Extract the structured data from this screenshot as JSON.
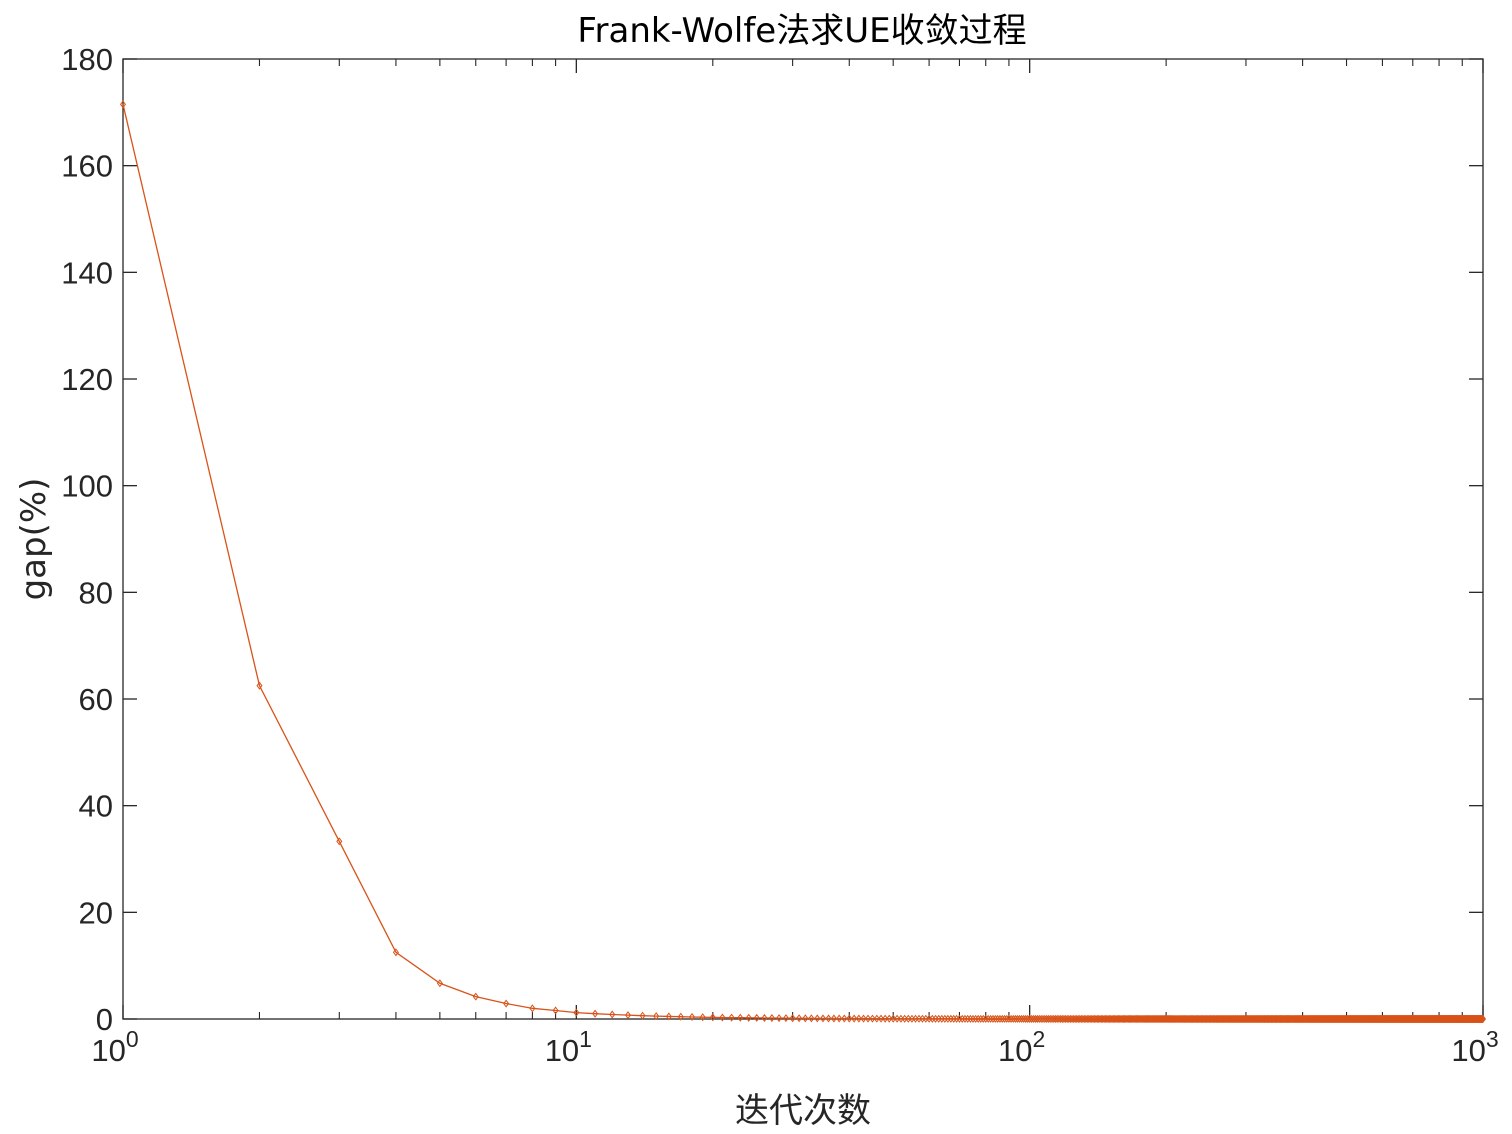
{
  "chart_data": {
    "type": "line",
    "title": "Frank-Wolfe法求UE收敛过程",
    "xlabel": "迭代次数",
    "ylabel": "gap(%)",
    "x_scale": "log",
    "xlim": [
      1,
      1000
    ],
    "ylim": [
      0,
      180
    ],
    "grid": false,
    "marker": "diamond",
    "line_color": "#D95319",
    "x_ticks": [
      {
        "value": 1,
        "base": "10",
        "exp": "0"
      },
      {
        "value": 10,
        "base": "10",
        "exp": "1"
      },
      {
        "value": 100,
        "base": "10",
        "exp": "2"
      },
      {
        "value": 1000,
        "base": "10",
        "exp": "3"
      }
    ],
    "y_ticks": [
      0,
      20,
      40,
      60,
      80,
      100,
      120,
      140,
      160,
      180
    ],
    "y_tick_labels": [
      "0",
      "20",
      "40",
      "60",
      "80",
      "100",
      "120",
      "140",
      "160",
      "180"
    ],
    "series": [
      {
        "x_range": [
          1,
          1000
        ],
        "x": [
          1,
          2,
          3,
          4,
          5,
          6,
          7,
          8,
          9,
          10,
          11,
          12,
          13,
          14,
          15,
          16,
          17,
          18,
          19,
          20
        ],
        "y": [
          171.5,
          62.5,
          33.3,
          12.5,
          6.7,
          4.2,
          2.9,
          2.0,
          1.6,
          1.2,
          1.0,
          0.85,
          0.72,
          0.62,
          0.54,
          0.48,
          0.43,
          0.38,
          0.34,
          0.31
        ],
        "tail_decay_k": 1.8
      }
    ]
  }
}
